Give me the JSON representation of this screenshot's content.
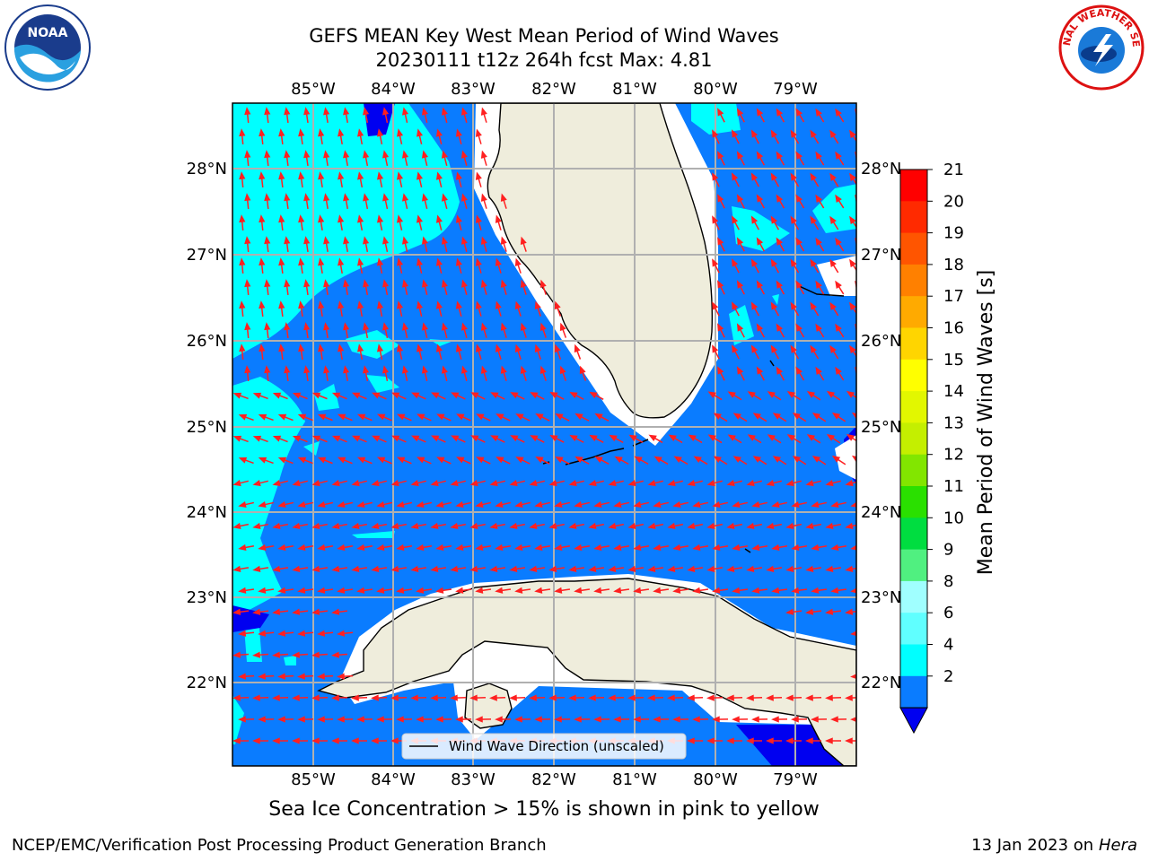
{
  "title": {
    "line1": "GEFS MEAN Key West Mean Period of Wind Waves",
    "line2": "20230111 t12z 264h fcst   Max: 4.81"
  },
  "map": {
    "lon_ticks": [
      "85°W",
      "84°W",
      "83°W",
      "82°W",
      "81°W",
      "80°W",
      "79°W"
    ],
    "lat_ticks": [
      "28°N",
      "27°N",
      "26°N",
      "25°N",
      "24°N",
      "23°N",
      "22°N"
    ],
    "legend_label": "Wind Wave Direction (unscaled)",
    "colors": {
      "ocean_2_4": "#0a7cff",
      "ocean_4_6": "#00ffff",
      "ocean_below_2": "#0000f0",
      "land": "#efeddc",
      "arrow": "#ff2020",
      "grid": "#b0b0b0"
    }
  },
  "colorbar": {
    "label": "Mean Period of Wind Waves [s]",
    "ticks": [
      "21",
      "20",
      "19",
      "18",
      "17",
      "16",
      "15",
      "14",
      "13",
      "12",
      "11",
      "10",
      "9",
      "8",
      "6",
      "4",
      "2"
    ],
    "colors": [
      "#ff0000",
      "#ff2a00",
      "#ff5500",
      "#ff8000",
      "#ffaa00",
      "#ffd500",
      "#ffff00",
      "#e2f700",
      "#c4ef00",
      "#82e600",
      "#2ae000",
      "#00dd40",
      "#50f080",
      "#a0ffff",
      "#60ffff",
      "#00ffff",
      "#0a7cff"
    ],
    "under_color": "#0000f0"
  },
  "subtitle": "Sea Ice Concentration > 15% is shown in pink to yellow",
  "footer": {
    "left": "NCEP/EMC/Verification Post Processing Product Generation Branch",
    "right_prefix": "13 Jan 2023 on ",
    "right_host": "Hera"
  },
  "logos": {
    "left": "NOAA",
    "right_text": "NATIONAL WEATHER SERVICE"
  }
}
